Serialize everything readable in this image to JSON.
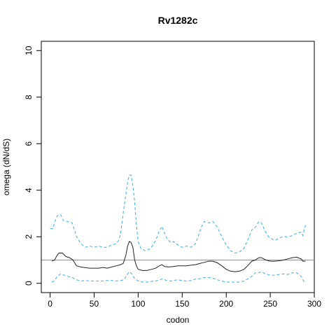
{
  "chart_data": {
    "type": "line",
    "title": "Rv1282c",
    "xlabel": "codon",
    "ylabel": "omega (dN/dS)",
    "xlim": [
      -10,
      300
    ],
    "ylim": [
      -0.4,
      10.4
    ],
    "x_ticks": [
      0,
      50,
      100,
      150,
      200,
      250,
      300
    ],
    "y_ticks": [
      0,
      2,
      4,
      6,
      8,
      10
    ],
    "reference_line": {
      "y": 1,
      "color": "#cc66cc"
    },
    "series": [
      {
        "role": "upper",
        "color": "#3aaee0",
        "dash": true,
        "points": [
          [
            0,
            2.35
          ],
          [
            3,
            2.35
          ],
          [
            5,
            2.6
          ],
          [
            8,
            2.9
          ],
          [
            12,
            2.95
          ],
          [
            15,
            2.7
          ],
          [
            20,
            2.65
          ],
          [
            25,
            2.6
          ],
          [
            28,
            2.25
          ],
          [
            30,
            2.0
          ],
          [
            35,
            1.7
          ],
          [
            40,
            1.55
          ],
          [
            45,
            1.6
          ],
          [
            50,
            1.55
          ],
          [
            55,
            1.6
          ],
          [
            60,
            1.55
          ],
          [
            65,
            1.55
          ],
          [
            70,
            1.65
          ],
          [
            75,
            1.7
          ],
          [
            78,
            1.85
          ],
          [
            80,
            2.1
          ],
          [
            82,
            2.7
          ],
          [
            84,
            3.3
          ],
          [
            86,
            3.8
          ],
          [
            88,
            4.35
          ],
          [
            90,
            4.65
          ],
          [
            92,
            4.65
          ],
          [
            94,
            4.2
          ],
          [
            96,
            3.5
          ],
          [
            98,
            2.5
          ],
          [
            100,
            1.8
          ],
          [
            103,
            1.5
          ],
          [
            108,
            1.4
          ],
          [
            112,
            1.45
          ],
          [
            116,
            1.6
          ],
          [
            120,
            1.85
          ],
          [
            124,
            2.25
          ],
          [
            127,
            2.45
          ],
          [
            130,
            2.15
          ],
          [
            133,
            1.9
          ],
          [
            137,
            1.75
          ],
          [
            140,
            1.8
          ],
          [
            145,
            1.65
          ],
          [
            150,
            1.55
          ],
          [
            155,
            1.6
          ],
          [
            160,
            1.55
          ],
          [
            165,
            1.7
          ],
          [
            168,
            2.0
          ],
          [
            172,
            2.45
          ],
          [
            175,
            2.65
          ],
          [
            180,
            2.6
          ],
          [
            185,
            2.65
          ],
          [
            190,
            2.4
          ],
          [
            195,
            2.0
          ],
          [
            200,
            1.65
          ],
          [
            205,
            1.4
          ],
          [
            210,
            1.3
          ],
          [
            215,
            1.35
          ],
          [
            220,
            1.5
          ],
          [
            225,
            1.9
          ],
          [
            229,
            2.3
          ],
          [
            233,
            2.4
          ],
          [
            237,
            2.65
          ],
          [
            240,
            2.6
          ],
          [
            244,
            2.25
          ],
          [
            248,
            2.0
          ],
          [
            252,
            1.9
          ],
          [
            256,
            1.85
          ],
          [
            260,
            1.95
          ],
          [
            265,
            2.0
          ],
          [
            270,
            2.0
          ],
          [
            275,
            2.05
          ],
          [
            280,
            2.15
          ],
          [
            285,
            2.2
          ],
          [
            287,
            2.05
          ],
          [
            289,
            2.4
          ],
          [
            291,
            2.55
          ]
        ]
      },
      {
        "role": "estimate",
        "color": "#222222",
        "dash": false,
        "points": [
          [
            2,
            0.95
          ],
          [
            5,
            1.0
          ],
          [
            8,
            1.2
          ],
          [
            10,
            1.3
          ],
          [
            14,
            1.3
          ],
          [
            18,
            1.15
          ],
          [
            22,
            1.1
          ],
          [
            26,
            1.0
          ],
          [
            30,
            0.75
          ],
          [
            35,
            0.7
          ],
          [
            40,
            0.67
          ],
          [
            45,
            0.65
          ],
          [
            50,
            0.65
          ],
          [
            55,
            0.65
          ],
          [
            60,
            0.68
          ],
          [
            65,
            0.65
          ],
          [
            70,
            0.7
          ],
          [
            75,
            0.75
          ],
          [
            80,
            0.8
          ],
          [
            83,
            0.85
          ],
          [
            86,
            1.2
          ],
          [
            88,
            1.6
          ],
          [
            90,
            1.8
          ],
          [
            92,
            1.75
          ],
          [
            94,
            1.55
          ],
          [
            96,
            1.0
          ],
          [
            98,
            0.75
          ],
          [
            100,
            0.6
          ],
          [
            105,
            0.55
          ],
          [
            110,
            0.55
          ],
          [
            115,
            0.6
          ],
          [
            120,
            0.65
          ],
          [
            124,
            0.75
          ],
          [
            127,
            0.8
          ],
          [
            130,
            0.72
          ],
          [
            135,
            0.7
          ],
          [
            140,
            0.72
          ],
          [
            145,
            0.75
          ],
          [
            150,
            0.75
          ],
          [
            155,
            0.75
          ],
          [
            160,
            0.78
          ],
          [
            165,
            0.8
          ],
          [
            170,
            0.85
          ],
          [
            175,
            0.9
          ],
          [
            180,
            0.95
          ],
          [
            185,
            0.95
          ],
          [
            190,
            0.88
          ],
          [
            195,
            0.75
          ],
          [
            200,
            0.6
          ],
          [
            205,
            0.52
          ],
          [
            210,
            0.5
          ],
          [
            215,
            0.52
          ],
          [
            220,
            0.6
          ],
          [
            225,
            0.78
          ],
          [
            229,
            0.95
          ],
          [
            233,
            1.0
          ],
          [
            237,
            1.1
          ],
          [
            240,
            1.1
          ],
          [
            245,
            1.0
          ],
          [
            250,
            0.95
          ],
          [
            255,
            0.95
          ],
          [
            260,
            0.97
          ],
          [
            265,
            1.0
          ],
          [
            270,
            1.05
          ],
          [
            275,
            1.1
          ],
          [
            280,
            1.12
          ],
          [
            285,
            1.05
          ],
          [
            287,
            0.95
          ],
          [
            290,
            0.95
          ]
        ]
      },
      {
        "role": "lower",
        "color": "#3aaee0",
        "dash": true,
        "points": [
          [
            2,
            0.05
          ],
          [
            5,
            0.1
          ],
          [
            8,
            0.3
          ],
          [
            12,
            0.4
          ],
          [
            16,
            0.35
          ],
          [
            20,
            0.3
          ],
          [
            25,
            0.25
          ],
          [
            30,
            0.15
          ],
          [
            35,
            0.1
          ],
          [
            40,
            0.12
          ],
          [
            45,
            0.1
          ],
          [
            50,
            0.1
          ],
          [
            55,
            0.1
          ],
          [
            60,
            0.1
          ],
          [
            65,
            0.12
          ],
          [
            70,
            0.12
          ],
          [
            75,
            0.1
          ],
          [
            80,
            0.12
          ],
          [
            84,
            0.15
          ],
          [
            87,
            0.35
          ],
          [
            90,
            0.5
          ],
          [
            93,
            0.4
          ],
          [
            96,
            0.2
          ],
          [
            100,
            0.1
          ],
          [
            105,
            0.05
          ],
          [
            110,
            0.05
          ],
          [
            115,
            0.08
          ],
          [
            120,
            0.1
          ],
          [
            125,
            0.15
          ],
          [
            128,
            0.2
          ],
          [
            132,
            0.12
          ],
          [
            136,
            0.1
          ],
          [
            140,
            0.12
          ],
          [
            145,
            0.15
          ],
          [
            150,
            0.12
          ],
          [
            155,
            0.1
          ],
          [
            160,
            0.12
          ],
          [
            165,
            0.18
          ],
          [
            170,
            0.2
          ],
          [
            175,
            0.25
          ],
          [
            180,
            0.25
          ],
          [
            185,
            0.22
          ],
          [
            190,
            0.15
          ],
          [
            195,
            0.1
          ],
          [
            200,
            0.05
          ],
          [
            205,
            0.05
          ],
          [
            210,
            0.05
          ],
          [
            215,
            0.05
          ],
          [
            220,
            0.1
          ],
          [
            225,
            0.2
          ],
          [
            229,
            0.3
          ],
          [
            233,
            0.45
          ],
          [
            237,
            0.45
          ],
          [
            240,
            0.5
          ],
          [
            245,
            0.4
          ],
          [
            250,
            0.35
          ],
          [
            255,
            0.35
          ],
          [
            260,
            0.38
          ],
          [
            265,
            0.4
          ],
          [
            270,
            0.38
          ],
          [
            275,
            0.45
          ],
          [
            280,
            0.45
          ],
          [
            285,
            0.3
          ],
          [
            288,
            0.1
          ],
          [
            290,
            0.05
          ]
        ]
      }
    ]
  }
}
